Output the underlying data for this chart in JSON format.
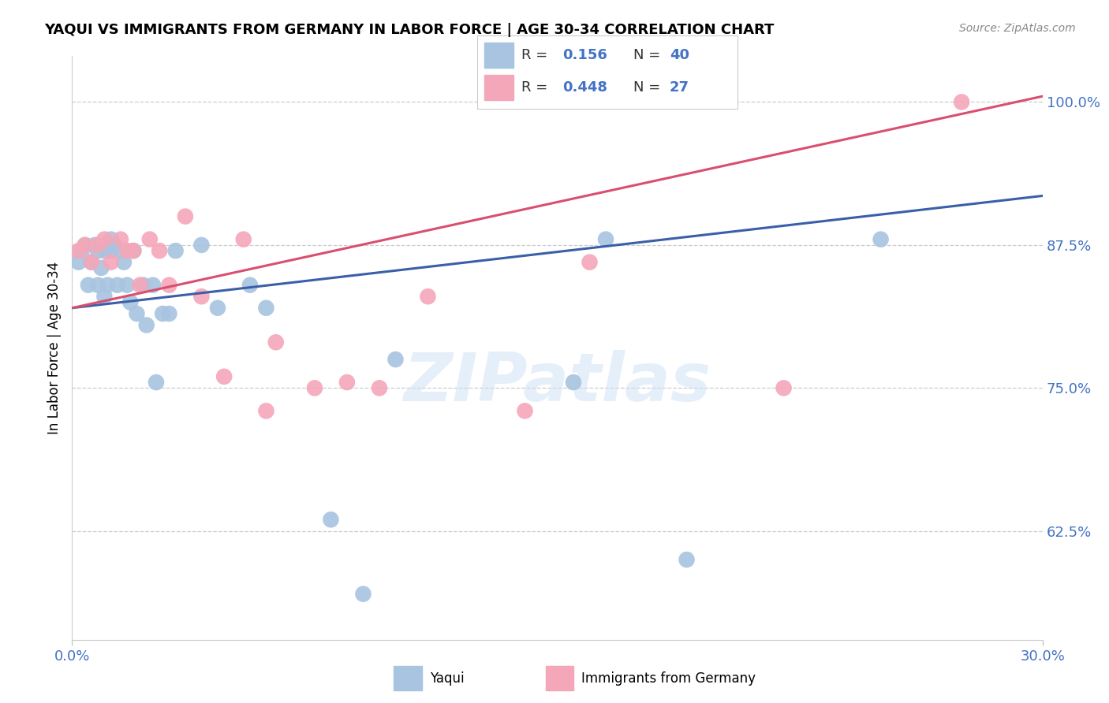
{
  "title": "YAQUI VS IMMIGRANTS FROM GERMANY IN LABOR FORCE | AGE 30-34 CORRELATION CHART",
  "source": "Source: ZipAtlas.com",
  "ylabel": "In Labor Force | Age 30-34",
  "xmin": 0.0,
  "xmax": 0.3,
  "ymin": 0.53,
  "ymax": 1.04,
  "yticks": [
    0.625,
    0.75,
    0.875,
    1.0
  ],
  "ytick_labels": [
    "62.5%",
    "75.0%",
    "87.5%",
    "100.0%"
  ],
  "blue_scatter_color": "#a8c4e0",
  "pink_scatter_color": "#f4a7b9",
  "blue_line_color": "#3a5fa8",
  "pink_line_color": "#d94f6e",
  "accent_blue": "#4472c4",
  "r_blue": "0.156",
  "n_blue": "40",
  "r_pink": "0.448",
  "n_pink": "27",
  "legend_label_blue": "Yaqui",
  "legend_label_pink": "Immigrants from Germany",
  "watermark": "ZIPatlas",
  "blue_line_y0": 0.82,
  "blue_line_y1": 0.918,
  "pink_line_y0": 0.82,
  "pink_line_y1": 1.005,
  "yaqui_x": [
    0.002,
    0.003,
    0.004,
    0.005,
    0.006,
    0.007,
    0.008,
    0.008,
    0.009,
    0.01,
    0.01,
    0.011,
    0.012,
    0.012,
    0.013,
    0.014,
    0.015,
    0.016,
    0.017,
    0.018,
    0.019,
    0.02,
    0.022,
    0.023,
    0.025,
    0.026,
    0.028,
    0.03,
    0.032,
    0.04,
    0.045,
    0.055,
    0.06,
    0.08,
    0.09,
    0.1,
    0.155,
    0.165,
    0.19,
    0.25
  ],
  "yaqui_y": [
    0.86,
    0.87,
    0.875,
    0.84,
    0.86,
    0.875,
    0.84,
    0.87,
    0.855,
    0.83,
    0.87,
    0.84,
    0.87,
    0.88,
    0.875,
    0.84,
    0.87,
    0.86,
    0.84,
    0.825,
    0.87,
    0.815,
    0.84,
    0.805,
    0.84,
    0.755,
    0.815,
    0.815,
    0.87,
    0.875,
    0.82,
    0.84,
    0.82,
    0.635,
    0.57,
    0.775,
    0.755,
    0.88,
    0.6,
    0.88
  ],
  "germany_x": [
    0.002,
    0.004,
    0.006,
    0.008,
    0.01,
    0.012,
    0.015,
    0.017,
    0.019,
    0.021,
    0.024,
    0.027,
    0.03,
    0.035,
    0.04,
    0.047,
    0.053,
    0.06,
    0.063,
    0.075,
    0.085,
    0.095,
    0.11,
    0.14,
    0.16,
    0.22,
    0.275
  ],
  "germany_y": [
    0.87,
    0.875,
    0.86,
    0.875,
    0.88,
    0.86,
    0.88,
    0.87,
    0.87,
    0.84,
    0.88,
    0.87,
    0.84,
    0.9,
    0.83,
    0.76,
    0.88,
    0.73,
    0.79,
    0.75,
    0.755,
    0.75,
    0.83,
    0.73,
    0.86,
    0.75,
    1.0
  ]
}
